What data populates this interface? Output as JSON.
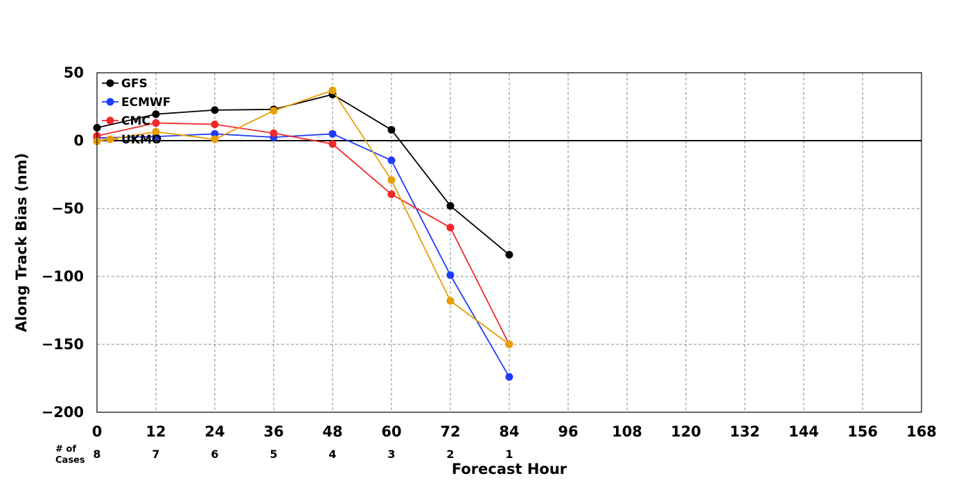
{
  "chart_data": {
    "type": "line",
    "title": "",
    "xlabel": "Forecast Hour",
    "ylabel": "Along Track Bias (nm)",
    "xlim": [
      0,
      168
    ],
    "ylim": [
      -200,
      50
    ],
    "x_ticks": [
      0,
      12,
      24,
      36,
      48,
      60,
      72,
      84,
      96,
      108,
      120,
      132,
      144,
      156,
      168
    ],
    "y_ticks": [
      50,
      0,
      -50,
      -100,
      -150,
      -200
    ],
    "y_tick_labels": [
      "50",
      "0",
      "−50",
      "−100",
      "−150",
      "−200"
    ],
    "grid": true,
    "zero_line": true,
    "legend_position": "top-left",
    "cases_label": "# of\nCases",
    "cases": [
      {
        "x": 0,
        "count": "8"
      },
      {
        "x": 12,
        "count": "7"
      },
      {
        "x": 24,
        "count": "6"
      },
      {
        "x": 36,
        "count": "5"
      },
      {
        "x": 48,
        "count": "4"
      },
      {
        "x": 60,
        "count": "3"
      },
      {
        "x": 72,
        "count": "2"
      },
      {
        "x": 84,
        "count": "1"
      }
    ],
    "x": [
      0,
      12,
      24,
      36,
      48,
      60,
      72,
      84
    ],
    "series": [
      {
        "name": "GFS",
        "color": "#000000",
        "values": [
          9.5,
          19.5,
          22.5,
          23,
          34,
          8,
          -48,
          -84
        ]
      },
      {
        "name": "ECMWF",
        "color": "#1f3bff",
        "values": [
          2,
          3,
          5,
          2.5,
          5,
          -14.5,
          -99,
          -174
        ]
      },
      {
        "name": "CMC",
        "color": "#f02828",
        "values": [
          3.5,
          13,
          12,
          5.5,
          -2.5,
          -39.5,
          -64,
          -150
        ]
      },
      {
        "name": "UKMO",
        "color": "#e69f00",
        "values": [
          -0.5,
          6.5,
          1,
          22,
          37,
          -29,
          -118,
          -150
        ]
      }
    ]
  }
}
